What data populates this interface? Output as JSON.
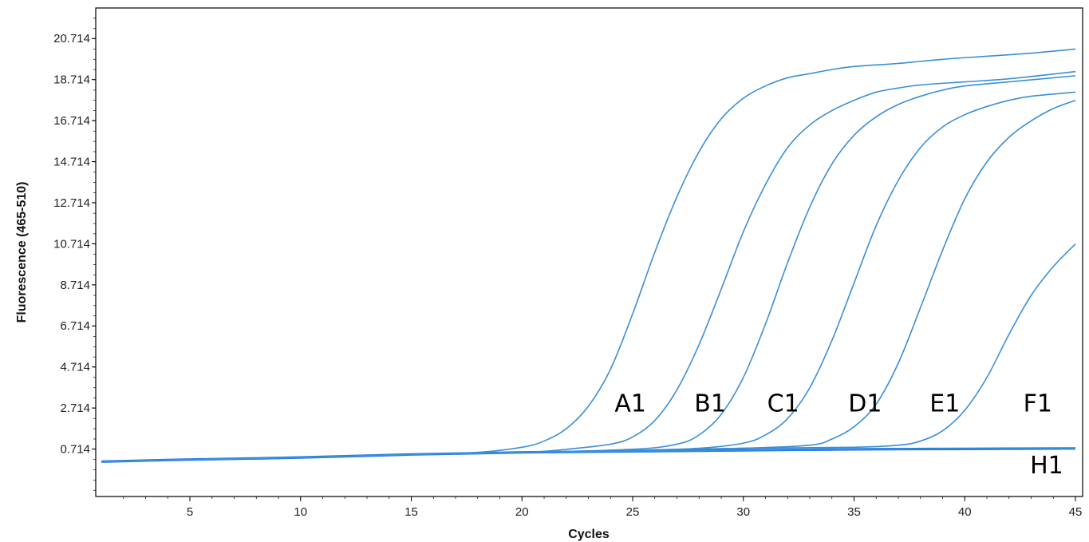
{
  "chart_data": {
    "type": "line",
    "xlabel": "Cycles",
    "ylabel": "Fluorescence (465-510)",
    "xlim": [
      1,
      45
    ],
    "ylim": [
      -1.6,
      22.2
    ],
    "x_ticks": [
      5,
      10,
      15,
      20,
      25,
      30,
      35,
      40,
      45
    ],
    "y_ticks": [
      "0.714",
      "2.714",
      "4.714",
      "6.714",
      "8.714",
      "10.714",
      "12.714",
      "14.714",
      "16.714",
      "18.714",
      "20.714"
    ],
    "grid": false,
    "line_color": "#3a8fd6",
    "baseline_color": "#1e73e8",
    "series": [
      {
        "name": "A1",
        "x": [
          1,
          5,
          10,
          15,
          18,
          20,
          21,
          22,
          23,
          24,
          25,
          26,
          27,
          28,
          29,
          30,
          31,
          32,
          33,
          34,
          35,
          37,
          39,
          41,
          43,
          45
        ],
        "y": [
          0.1,
          0.2,
          0.3,
          0.45,
          0.55,
          0.8,
          1.1,
          1.7,
          2.8,
          4.6,
          7.3,
          10.3,
          13.0,
          15.2,
          16.8,
          17.8,
          18.4,
          18.8,
          19.0,
          19.2,
          19.35,
          19.5,
          19.7,
          19.85,
          20.0,
          20.2
        ]
      },
      {
        "name": "B1",
        "x": [
          1,
          5,
          10,
          15,
          20,
          22,
          24,
          25,
          26,
          27,
          28,
          29,
          30,
          31,
          32,
          33,
          34,
          35,
          36,
          37,
          38,
          40,
          42,
          45
        ],
        "y": [
          0.1,
          0.2,
          0.3,
          0.45,
          0.55,
          0.7,
          0.95,
          1.3,
          2.1,
          3.6,
          5.8,
          8.5,
          11.3,
          13.6,
          15.4,
          16.5,
          17.2,
          17.7,
          18.1,
          18.3,
          18.45,
          18.6,
          18.75,
          19.1
        ]
      },
      {
        "name": "C1",
        "x": [
          1,
          5,
          10,
          15,
          20,
          25,
          27,
          28,
          29,
          30,
          31,
          32,
          33,
          34,
          35,
          36,
          37,
          38,
          39,
          40,
          42,
          45
        ],
        "y": [
          0.1,
          0.2,
          0.3,
          0.45,
          0.55,
          0.7,
          0.95,
          1.4,
          2.4,
          4.2,
          6.8,
          9.8,
          12.5,
          14.6,
          16.0,
          16.9,
          17.5,
          17.9,
          18.2,
          18.4,
          18.6,
          18.9
        ]
      },
      {
        "name": "D1",
        "x": [
          1,
          5,
          10,
          15,
          20,
          25,
          28,
          30,
          31,
          32,
          33,
          34,
          35,
          36,
          37,
          38,
          39,
          40,
          41,
          42,
          43,
          45
        ],
        "y": [
          0.1,
          0.2,
          0.3,
          0.45,
          0.55,
          0.65,
          0.75,
          1.0,
          1.4,
          2.2,
          3.7,
          6.0,
          8.8,
          11.6,
          13.8,
          15.4,
          16.4,
          17.0,
          17.4,
          17.7,
          17.9,
          18.1
        ]
      },
      {
        "name": "E1",
        "x": [
          1,
          5,
          10,
          15,
          20,
          25,
          30,
          33,
          34,
          35,
          36,
          37,
          38,
          39,
          40,
          41,
          42,
          43,
          44,
          45
        ],
        "y": [
          0.1,
          0.2,
          0.3,
          0.45,
          0.55,
          0.65,
          0.75,
          0.9,
          1.2,
          1.8,
          2.9,
          4.9,
          7.6,
          10.4,
          12.9,
          14.7,
          15.9,
          16.7,
          17.3,
          17.7
        ]
      },
      {
        "name": "F1",
        "x": [
          1,
          5,
          10,
          15,
          20,
          25,
          30,
          35,
          37,
          38,
          39,
          40,
          41,
          42,
          43,
          44,
          45
        ],
        "y": [
          0.1,
          0.2,
          0.3,
          0.45,
          0.55,
          0.65,
          0.75,
          0.8,
          0.9,
          1.1,
          1.6,
          2.6,
          4.2,
          6.3,
          8.2,
          9.6,
          10.7
        ]
      },
      {
        "name": "H1",
        "x": [
          1,
          5,
          10,
          15,
          20,
          25,
          30,
          35,
          40,
          45
        ],
        "y": [
          0.1,
          0.2,
          0.3,
          0.45,
          0.55,
          0.6,
          0.65,
          0.7,
          0.72,
          0.74
        ]
      }
    ],
    "annotations": [
      {
        "text": "A1",
        "x": 24.9,
        "y": 3.0
      },
      {
        "text": "B1",
        "x": 28.5,
        "y": 3.0
      },
      {
        "text": "C1",
        "x": 31.8,
        "y": 3.0
      },
      {
        "text": "D1",
        "x": 35.5,
        "y": 3.0
      },
      {
        "text": "E1",
        "x": 39.1,
        "y": 3.0
      },
      {
        "text": "F1",
        "x": 43.3,
        "y": 3.0
      },
      {
        "text": "H1",
        "x": 43.7,
        "y": 0.0
      }
    ]
  }
}
